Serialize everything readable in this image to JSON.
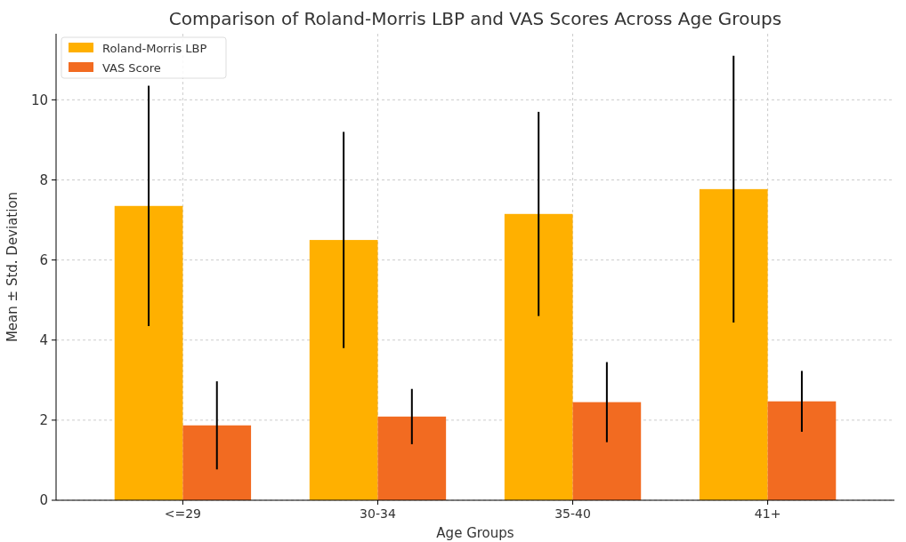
{
  "chart_data": {
    "type": "bar",
    "title": "Comparison of Roland-Morris LBP and VAS Scores Across Age Groups",
    "xlabel": "Age Groups",
    "ylabel": "Mean ± Std. Deviation",
    "categories": [
      "<=29",
      "30-34",
      "35-40",
      "41+"
    ],
    "series": [
      {
        "name": "Roland-Morris LBP",
        "color": "#ffb000",
        "values": [
          7.35,
          6.5,
          7.15,
          7.77
        ],
        "errors": [
          3.0,
          2.7,
          2.55,
          3.33
        ]
      },
      {
        "name": "VAS Score",
        "color": "#f26b21",
        "values": [
          1.87,
          2.09,
          2.45,
          2.47
        ],
        "errors": [
          1.1,
          0.69,
          1.0,
          0.76
        ]
      }
    ],
    "ylim": [
      0,
      11.65
    ],
    "yticks": [
      0,
      2,
      4,
      6,
      8,
      10
    ],
    "grid": true,
    "legend": "top left"
  }
}
